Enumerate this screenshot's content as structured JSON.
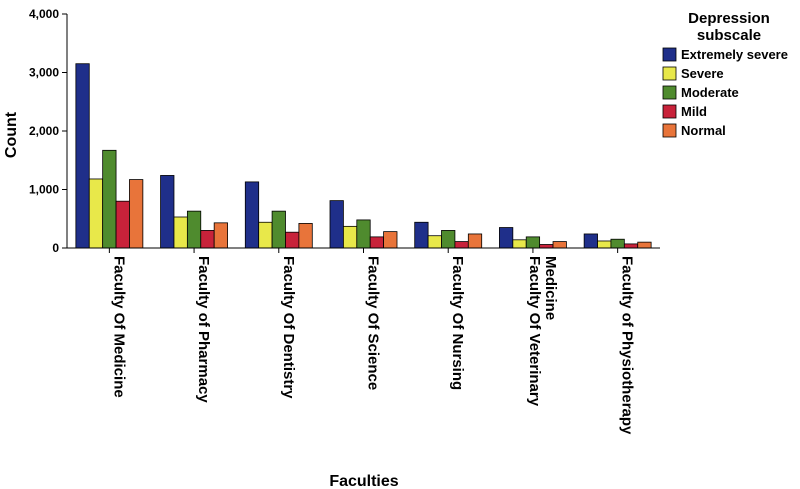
{
  "chart_data": {
    "type": "bar",
    "title": "",
    "xlabel": "Faculties",
    "ylabel": "Count",
    "ylim": [
      0,
      4000
    ],
    "yticks": [
      0,
      1000,
      2000,
      3000,
      4000
    ],
    "ytick_labels": [
      "0",
      "1,000",
      "2,000",
      "3,000",
      "4,000"
    ],
    "grid": false,
    "legend_position": "top-right",
    "legend_title": "Depression subscale",
    "legend_title_lines": [
      "Depression",
      "subscale"
    ],
    "categories": [
      [
        "Faculty Of Medicine"
      ],
      [
        "Faculty of Pharmacy"
      ],
      [
        "Faculty Of Dentistry"
      ],
      [
        "Faculty Of Science"
      ],
      [
        "Faculty Of Nursing"
      ],
      [
        "Faculty Of Veterinary",
        "Medicine"
      ],
      [
        "Faculty of Physiotherapy"
      ]
    ],
    "series": [
      {
        "name": "Extremely severe",
        "color": "#1f2f8a",
        "values": [
          3150,
          1240,
          1130,
          810,
          440,
          350,
          240
        ]
      },
      {
        "name": "Severe",
        "color": "#e8e84a",
        "values": [
          1180,
          530,
          440,
          370,
          210,
          140,
          120
        ]
      },
      {
        "name": "Moderate",
        "color": "#4f8b2e",
        "values": [
          1670,
          630,
          630,
          480,
          300,
          190,
          150
        ]
      },
      {
        "name": "Mild",
        "color": "#c8223a",
        "values": [
          800,
          300,
          270,
          190,
          110,
          60,
          70
        ]
      },
      {
        "name": "Normal",
        "color": "#e8743a",
        "values": [
          1170,
          430,
          420,
          280,
          240,
          110,
          100
        ]
      }
    ]
  }
}
